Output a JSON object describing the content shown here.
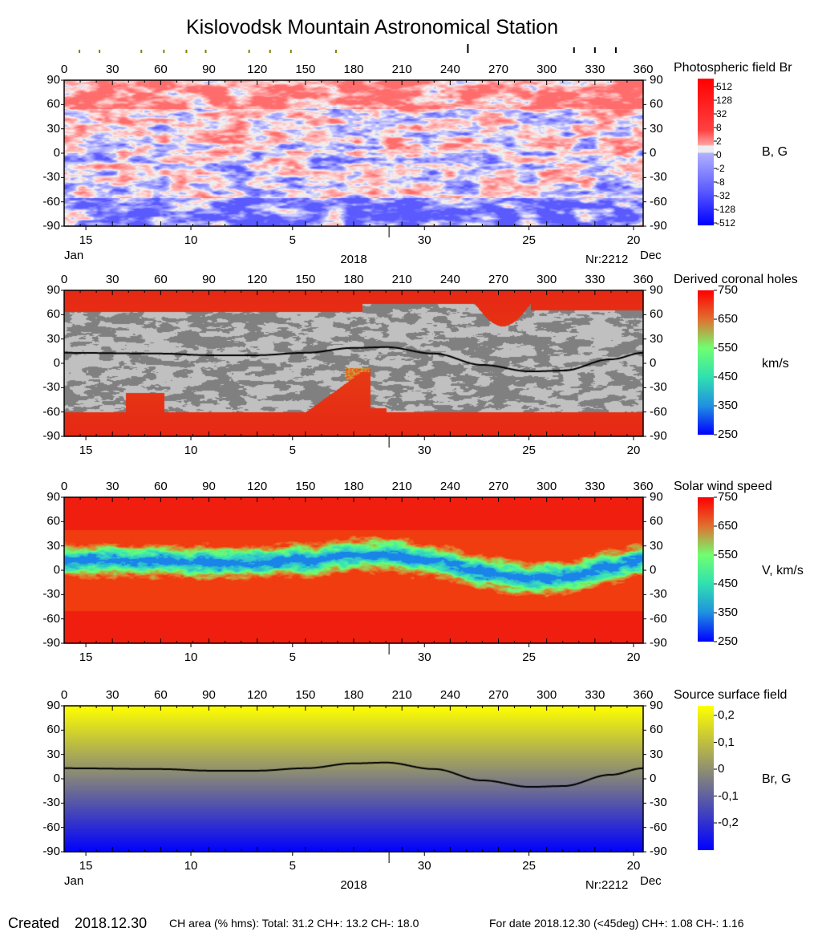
{
  "title": "Kislovodsk Mountain Astronomical Station",
  "event_markers": {
    "olive_lon": [
      9.5,
      22,
      48,
      62,
      76,
      88,
      115,
      128,
      141,
      169
    ],
    "black_lon": [
      251,
      317,
      330,
      343
    ],
    "colors": {
      "olive": "#808000",
      "black": "#000000"
    }
  },
  "axes": {
    "lon_ticks": [
      "0",
      "30",
      "60",
      "90",
      "120",
      "150",
      "180",
      "210",
      "240",
      "270",
      "300",
      "330",
      "360"
    ],
    "lat_ticks": [
      "90",
      "60",
      "30",
      "0",
      "-30",
      "-60",
      "-90"
    ],
    "date_ticks": [
      {
        "label": "15",
        "lon": 13.5
      },
      {
        "label": "10",
        "lon": 78.8
      },
      {
        "label": "5",
        "lon": 142
      },
      {
        "label": "30",
        "lon": 224
      },
      {
        "label": "25",
        "lon": 289
      },
      {
        "label": "20",
        "lon": 354
      }
    ],
    "month_divider_lon": 202,
    "month_left": "Jan",
    "month_right": "Dec",
    "year": "2018",
    "rotation": "Nr:2212"
  },
  "chart_data": [
    {
      "type": "heatmap",
      "title": "Photospheric field Br",
      "unit": "B, G",
      "colorbar_labels": [
        "512",
        "128",
        "32",
        "8",
        "2",
        "0",
        "-2",
        "-8",
        "-32",
        "-128",
        "-512"
      ],
      "colors": {
        "positive": "#ff0000",
        "zero": "#eeeeee",
        "negative": "#0000ff"
      }
    },
    {
      "type": "heatmap",
      "title": "Derived coronal holes",
      "unit": "km/s",
      "colorbar_labels": [
        "750",
        "650",
        "550",
        "450",
        "350",
        "250"
      ],
      "colors": {
        "outside_holes": "#808080",
        "outside_holes_light": "#c0c0c0",
        "neutral_line": "#000000"
      }
    },
    {
      "type": "heatmap",
      "title": "Solar wind speed",
      "unit": "V, km/s",
      "colorbar_labels": [
        "750",
        "650",
        "550",
        "450",
        "350",
        "250"
      ]
    },
    {
      "type": "heatmap",
      "title": "Source surface field",
      "unit": "Br, G",
      "colorbar_labels": [
        "0,2",
        "0,1",
        "0",
        "-0,1",
        "-0,2"
      ],
      "colors": {
        "positive": "#ffff00",
        "zero": "#808080",
        "negative": "#0000ff"
      }
    }
  ],
  "neutral_line": {
    "lon": [
      0,
      60,
      90,
      120,
      150,
      180,
      200,
      230,
      260,
      290,
      310,
      340,
      360
    ],
    "lat": [
      13,
      12,
      10,
      10,
      13,
      19,
      20,
      12,
      -2,
      -10,
      -9,
      5,
      13
    ]
  },
  "footer": {
    "created_label": "Created",
    "created_date": "2018.12.30",
    "ch_area": "CH area (% hms): Total: 31.2 CH+: 13.2   CH-: 18.0",
    "for_date": "For date 2018.12.30 (<45deg) CH+: 1.08    CH-: 1.16"
  }
}
